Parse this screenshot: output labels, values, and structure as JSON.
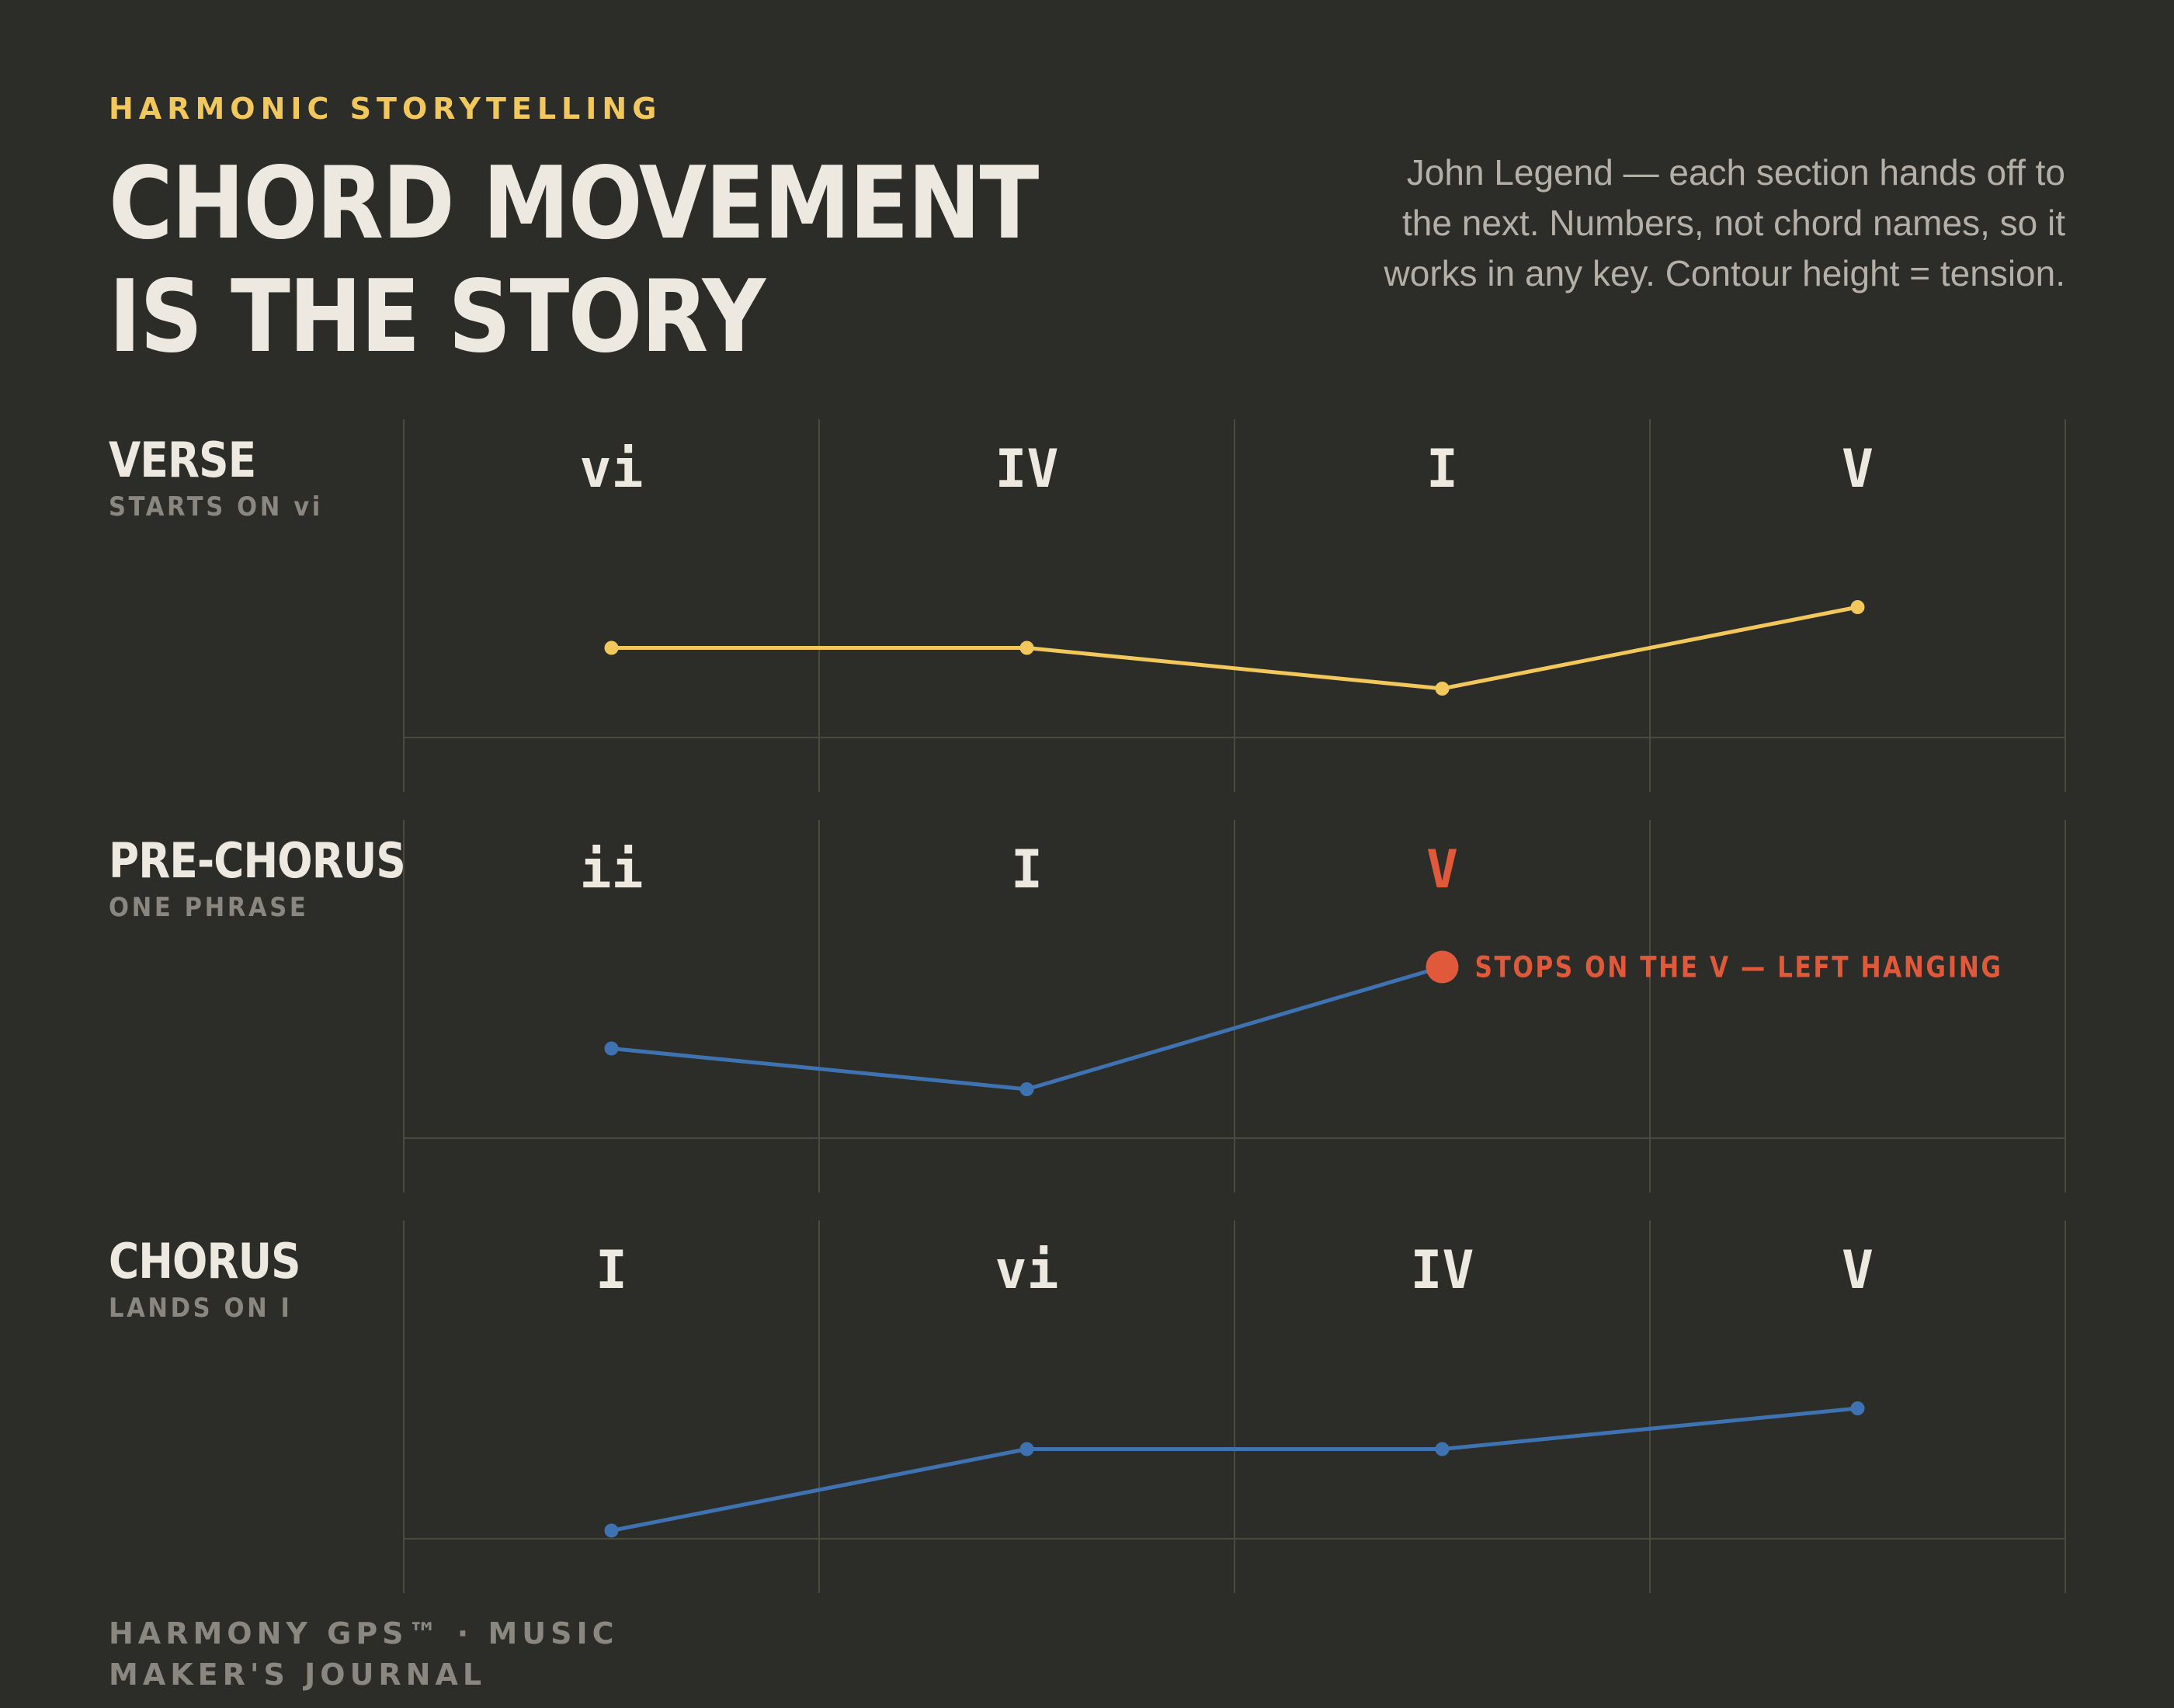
{
  "header": {
    "kicker": "HARMONIC STORYTELLING",
    "title_line1": "CHORD MOVEMENT",
    "title_line2": "IS THE STORY",
    "description": "John Legend — each section hands off to the next. Numbers, not chord names, so it works in any key. Contour height = tension."
  },
  "footer": {
    "text": "HARMONY GPS™ · MUSIC MAKER'S JOURNAL"
  },
  "colors": {
    "background": "#2c2c29",
    "verse_line": "#f2c75c",
    "section_line": "#3f72b0",
    "highlight": "#e0593a",
    "chord_text": "#ede8e0",
    "grid": "#4a4a3e"
  },
  "chart_data": [
    {
      "type": "line",
      "section": "VERSE",
      "subtitle": "STARTS ON vi",
      "categories": [
        "vi",
        "IV",
        "I",
        "V"
      ],
      "values": [
        2.2,
        2.2,
        1.2,
        3.2
      ],
      "ylim": [
        -1,
        6
      ],
      "color": "#f2c75c",
      "grid": true
    },
    {
      "type": "line",
      "section": "PRE-CHORUS",
      "subtitle": "ONE PHRASE",
      "categories": [
        "ii",
        "I",
        "V"
      ],
      "values": [
        2.2,
        1.2,
        4.2
      ],
      "ylim": [
        -1,
        6
      ],
      "color": "#3f72b0",
      "grid": true,
      "highlight_index": 2,
      "annotation": "STOPS ON THE V — LEFT HANGING"
    },
    {
      "type": "line",
      "section": "CHORUS",
      "subtitle": "LANDS ON I",
      "categories": [
        "I",
        "vi",
        "IV",
        "V"
      ],
      "values": [
        0.2,
        2.2,
        2.2,
        3.2
      ],
      "ylim": [
        -1,
        6
      ],
      "color": "#3f72b0",
      "grid": true
    }
  ]
}
